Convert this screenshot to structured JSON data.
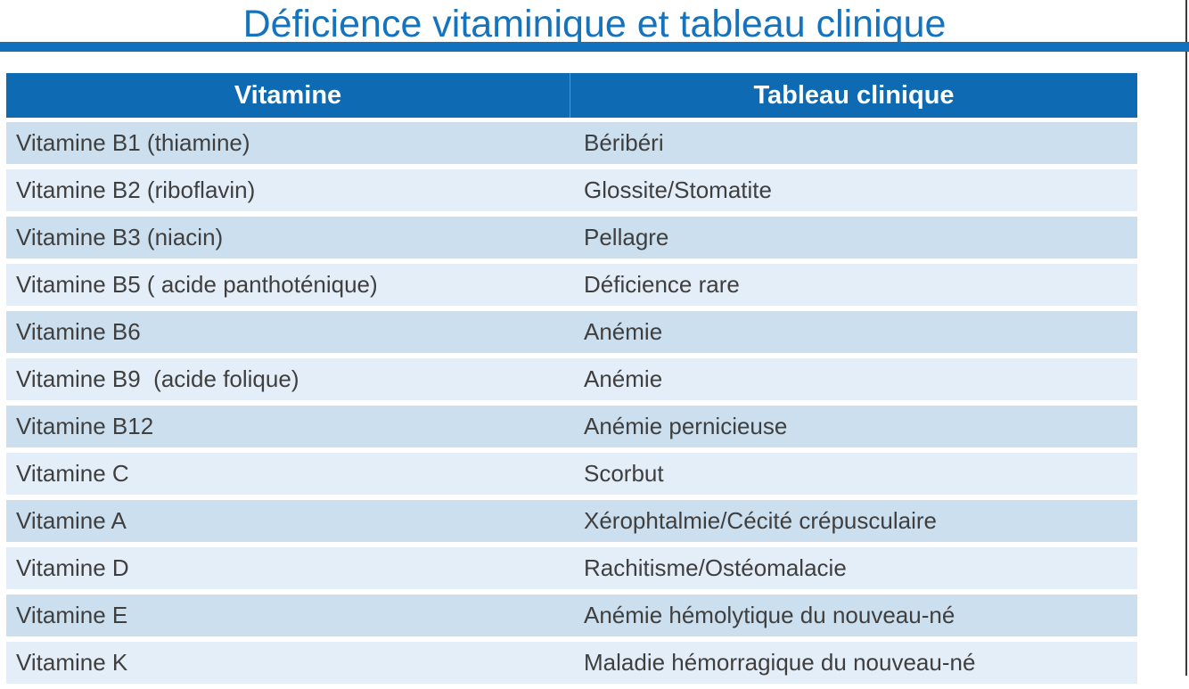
{
  "page": {
    "title": "Déficience vitaminique et tableau clinique",
    "colors": {
      "title_blue": "#1573bd",
      "rule_blue": "#1271ba",
      "header_blue": "#0e6ab3",
      "row_dark": "#cbdfee",
      "row_light": "#e4eef8",
      "cell_text": "#3f3f3f",
      "header_text": "#ffffff",
      "right_border": "#3c3c3c"
    }
  },
  "table": {
    "columns": [
      "Vitamine",
      "Tableau clinique"
    ],
    "rows": [
      {
        "vitamin": "Vitamine B1 (thiamine)",
        "clinical": "Béribéri"
      },
      {
        "vitamin": "Vitamine B2 (riboflavin)",
        "clinical": "Glossite/Stomatite"
      },
      {
        "vitamin": "Vitamine B3 (niacin)",
        "clinical": "Pellagre"
      },
      {
        "vitamin": "Vitamine B5 ( acide panthoténique)",
        "clinical": "Déficience rare"
      },
      {
        "vitamin": "Vitamine B6",
        "clinical": "Anémie"
      },
      {
        "vitamin": "Vitamine B9  (acide folique)",
        "clinical": "Anémie"
      },
      {
        "vitamin": "Vitamine B12",
        "clinical": "Anémie pernicieuse"
      },
      {
        "vitamin": "Vitamine C",
        "clinical": "Scorbut"
      },
      {
        "vitamin": "Vitamine A",
        "clinical": "Xérophtalmie/Cécité crépusculaire"
      },
      {
        "vitamin": "Vitamine D",
        "clinical": "Rachitisme/Ostéomalacie"
      },
      {
        "vitamin": "Vitamine E",
        "clinical": "Anémie hémolytique du nouveau-né"
      },
      {
        "vitamin": "Vitamine K",
        "clinical": "Maladie hémorragique du nouveau-né"
      }
    ]
  }
}
